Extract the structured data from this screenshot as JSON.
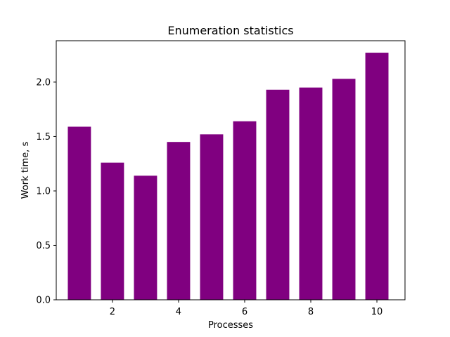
{
  "chart_data": {
    "type": "bar",
    "title": "Enumeration statistics",
    "xlabel": "Processes",
    "ylabel": "Work time, s",
    "x": [
      1,
      2,
      3,
      4,
      5,
      6,
      7,
      8,
      9,
      10
    ],
    "values": [
      1.59,
      1.26,
      1.14,
      1.45,
      1.52,
      1.64,
      1.93,
      1.95,
      2.03,
      2.27
    ],
    "bar_color": "#800080",
    "xlim": [
      0.3,
      10.85
    ],
    "ylim": [
      0,
      2.38
    ],
    "xticks": [
      2,
      4,
      6,
      8,
      10
    ],
    "yticks": [
      0.0,
      0.5,
      1.0,
      1.5,
      2.0
    ],
    "ytick_labels": [
      "0.0",
      "0.5",
      "1.0",
      "1.5",
      "2.0"
    ],
    "grid": false,
    "legend": "none"
  }
}
